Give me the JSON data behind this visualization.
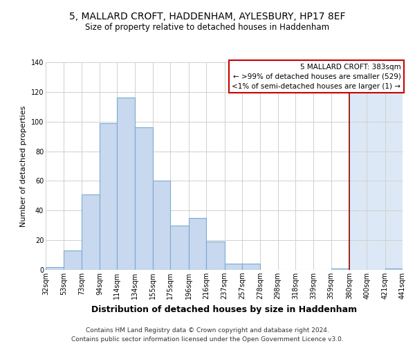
{
  "title": "5, MALLARD CROFT, HADDENHAM, AYLESBURY, HP17 8EF",
  "subtitle": "Size of property relative to detached houses in Haddenham",
  "xlabel": "Distribution of detached houses by size in Haddenham",
  "ylabel": "Number of detached properties",
  "bar_color": "#c8d8ee",
  "bar_edgecolor": "#7aaad0",
  "grid_color": "#d0d0d0",
  "vline_x": 380,
  "vline_color": "#990000",
  "vline_shade_color": "#dce8f5",
  "bin_edges": [
    32,
    53,
    73,
    94,
    114,
    134,
    155,
    175,
    196,
    216,
    237,
    257,
    278,
    298,
    318,
    339,
    359,
    380,
    400,
    421,
    441
  ],
  "bar_heights": [
    2,
    13,
    51,
    99,
    116,
    96,
    60,
    30,
    35,
    19,
    4,
    4,
    0,
    0,
    0,
    0,
    1,
    0,
    0,
    1
  ],
  "tick_labels": [
    "32sqm",
    "53sqm",
    "73sqm",
    "94sqm",
    "114sqm",
    "134sqm",
    "155sqm",
    "175sqm",
    "196sqm",
    "216sqm",
    "237sqm",
    "257sqm",
    "278sqm",
    "298sqm",
    "318sqm",
    "339sqm",
    "359sqm",
    "380sqm",
    "400sqm",
    "421sqm",
    "441sqm"
  ],
  "annotation_title": "5 MALLARD CROFT: 383sqm",
  "annotation_line1": "← >99% of detached houses are smaller (529)",
  "annotation_line2": "<1% of semi-detached houses are larger (1) →",
  "footer_line1": "Contains HM Land Registry data © Crown copyright and database right 2024.",
  "footer_line2": "Contains public sector information licensed under the Open Government Licence v3.0.",
  "ylim": [
    0,
    140
  ],
  "yticks": [
    0,
    20,
    40,
    60,
    80,
    100,
    120,
    140
  ],
  "background_color": "#ffffff",
  "title_fontsize": 10,
  "subtitle_fontsize": 8.5,
  "ylabel_fontsize": 8,
  "xlabel_fontsize": 9,
  "tick_fontsize": 7,
  "annotation_fontsize": 7.5,
  "footer_fontsize": 6.5
}
